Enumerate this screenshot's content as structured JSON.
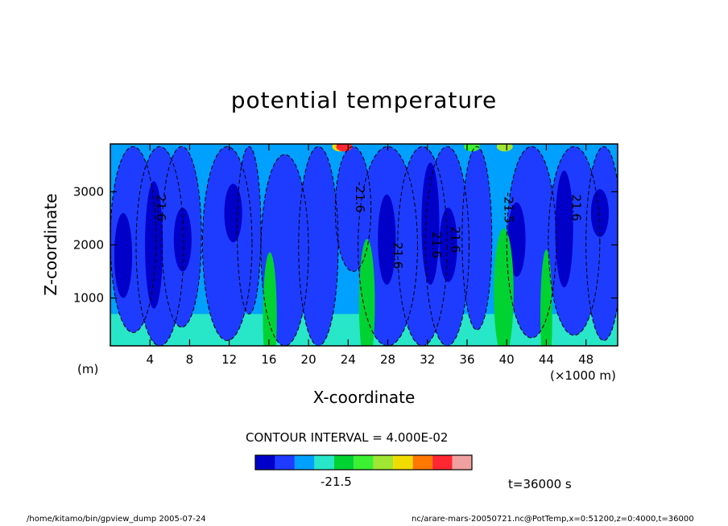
{
  "chart_data": {
    "type": "heatmap",
    "title": "potential temperature",
    "xlabel": "X-coordinate",
    "ylabel": "Z-coordinate",
    "x_unit": "(×1000 m)",
    "y_unit": "(m)",
    "x_ticks": [
      4,
      8,
      12,
      16,
      20,
      24,
      28,
      32,
      36,
      40,
      44,
      48
    ],
    "y_ticks": [
      1000,
      2000,
      3000
    ],
    "xlim": [
      0,
      51.2
    ],
    "ylim": [
      100,
      3900
    ],
    "contour_interval_text": "CONTOUR INTERVAL = 4.000E-02",
    "colorbar_colors": [
      "#0000c8",
      "#1e3cff",
      "#00a0ff",
      "#28e6c8",
      "#00d232",
      "#3cf032",
      "#a0e632",
      "#f0dc00",
      "#ff7800",
      "#ff2832",
      "#f0a0a0"
    ],
    "colorbar_label": "-21.5",
    "contour_labels": [
      {
        "text": "21.6",
        "x": 4.7,
        "z": 2700
      },
      {
        "text": "-21.6",
        "x": 24.8,
        "z": 2900
      },
      {
        "text": "21.6",
        "x": 28.6,
        "z": 1800
      },
      {
        "text": "21.6",
        "x": 32.5,
        "z": 2000
      },
      {
        "text": "21.6",
        "x": 34.4,
        "z": 2100
      },
      {
        "text": "-21.5",
        "x": 39.8,
        "z": 2700
      },
      {
        "text": "21.6",
        "x": 46.6,
        "z": 2700
      }
    ]
  },
  "time_label": "t=36000 s",
  "footer": {
    "left": "/home/kitamo/bin/gpview_dump   2005-07-24",
    "right": "nc/arare-mars-20050721.nc@PotTemp,x=0:51200,z=0:4000,t=36000"
  }
}
